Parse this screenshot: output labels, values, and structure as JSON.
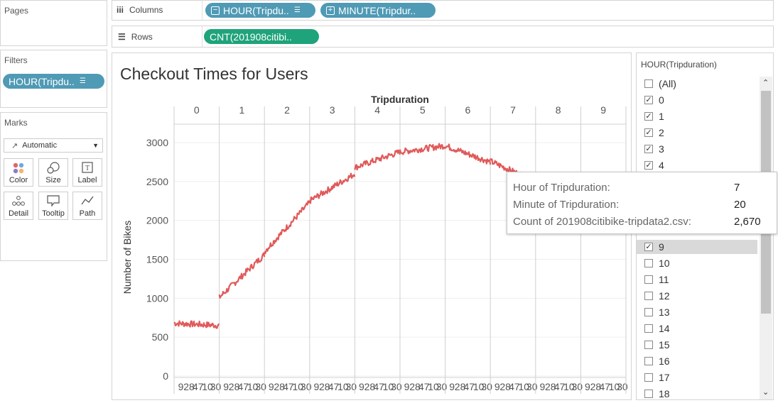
{
  "pages": {
    "title": "Pages"
  },
  "filters": {
    "title": "Filters",
    "pill": "HOUR(Tripdu.."
  },
  "marks": {
    "title": "Marks",
    "type": "Automatic",
    "buttons": [
      {
        "label": "Color",
        "icon": "color-icon"
      },
      {
        "label": "Size",
        "icon": "size-icon"
      },
      {
        "label": "Label",
        "icon": "label-icon"
      },
      {
        "label": "Detail",
        "icon": "detail-icon"
      },
      {
        "label": "Tooltip",
        "icon": "tooltip-icon"
      },
      {
        "label": "Path",
        "icon": "path-icon"
      }
    ]
  },
  "shelves": {
    "columns_label": "Columns",
    "rows_label": "Rows",
    "columns_pills": [
      "HOUR(Tripdu..",
      "MINUTE(Tripdur.."
    ],
    "rows_pill": "CNT(201908citibi.."
  },
  "view": {
    "title": "Checkout Times for Users"
  },
  "chart_data": {
    "type": "line",
    "title": "Checkout Times for Users",
    "top_axis_label": "Tripduration",
    "ylabel": "Number of Bikes",
    "ylim": [
      0,
      3100
    ],
    "yticks": [
      "0",
      "500",
      "1000",
      "1500",
      "2000",
      "2500",
      "3000"
    ],
    "hours": [
      "0",
      "1",
      "2",
      "3",
      "4",
      "5",
      "6",
      "7",
      "8",
      "9"
    ],
    "minute_tick_labels": [
      "9",
      "28",
      "47",
      "10",
      "30"
    ],
    "color": "#e05a5a",
    "hourly_profile": [
      {
        "hour": 0,
        "start": 680,
        "end": 650
      },
      {
        "hour": 1,
        "start": 1010,
        "end": 1560
      },
      {
        "hour": 2,
        "start": 1600,
        "end": 2230
      },
      {
        "hour": 3,
        "start": 2250,
        "end": 2600
      },
      {
        "hour": 4,
        "start": 2680,
        "end": 2880
      },
      {
        "hour": 5,
        "start": 2880,
        "end": 2960
      },
      {
        "hour": 6,
        "start": 2960,
        "end": 2750
      },
      {
        "hour": 7,
        "start": 2760,
        "end": 2500
      },
      {
        "hour": 8,
        "start": 2560,
        "end": 2500
      }
    ]
  },
  "filter_card": {
    "title": "HOUR(Tripduration)",
    "items": [
      {
        "label": "(All)",
        "checked": false
      },
      {
        "label": "0",
        "checked": true
      },
      {
        "label": "1",
        "checked": true
      },
      {
        "label": "2",
        "checked": true
      },
      {
        "label": "3",
        "checked": true
      },
      {
        "label": "4",
        "checked": true
      },
      {
        "label": "9",
        "checked": true
      },
      {
        "label": "10",
        "checked": false
      },
      {
        "label": "11",
        "checked": false
      },
      {
        "label": "12",
        "checked": false
      },
      {
        "label": "13",
        "checked": false
      },
      {
        "label": "14",
        "checked": false
      },
      {
        "label": "15",
        "checked": false
      },
      {
        "label": "16",
        "checked": false
      },
      {
        "label": "17",
        "checked": false
      },
      {
        "label": "18",
        "checked": false
      }
    ]
  },
  "tooltip": {
    "rows": [
      {
        "label": "Hour of Tripduration:",
        "value": "7"
      },
      {
        "label": "Minute of Tripduration:",
        "value": "20"
      },
      {
        "label": "Count of 201908citibike-tripdata2.csv:",
        "value": "2,670"
      }
    ]
  }
}
